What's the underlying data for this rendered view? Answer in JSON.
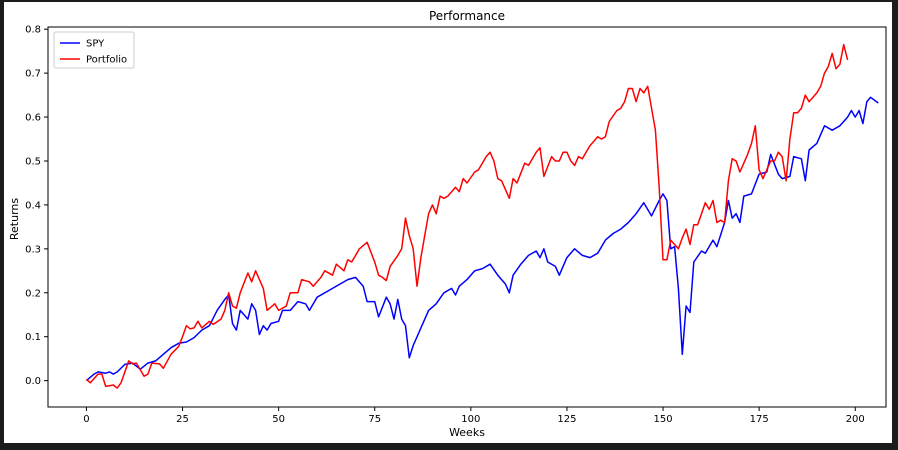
{
  "chart_data": {
    "type": "line",
    "title": "Performance",
    "xlabel": "Weeks",
    "ylabel": "Returns",
    "xlim": [
      -10,
      208
    ],
    "ylim": [
      -0.06,
      0.805
    ],
    "xticks": [
      0,
      25,
      50,
      75,
      100,
      125,
      150,
      175,
      200
    ],
    "yticks": [
      0.0,
      0.1,
      0.2,
      0.3,
      0.4,
      0.5,
      0.6,
      0.7,
      0.8
    ],
    "grid": false,
    "legend_position": "top-left",
    "series": [
      {
        "name": "SPY",
        "color": "#0000ff",
        "points": [
          [
            0,
            0
          ],
          [
            2,
            0.015
          ],
          [
            3,
            0.02
          ],
          [
            5,
            0.017
          ],
          [
            6,
            0.02
          ],
          [
            7,
            0.015
          ],
          [
            8,
            0.02
          ],
          [
            10,
            0.037
          ],
          [
            12,
            0.04
          ],
          [
            14,
            0.026
          ],
          [
            16,
            0.04
          ],
          [
            18,
            0.045
          ],
          [
            20,
            0.06
          ],
          [
            22,
            0.075
          ],
          [
            24,
            0.085
          ],
          [
            26,
            0.088
          ],
          [
            28,
            0.098
          ],
          [
            30,
            0.115
          ],
          [
            32,
            0.125
          ],
          [
            34,
            0.16
          ],
          [
            36,
            0.185
          ],
          [
            37,
            0.195
          ],
          [
            38,
            0.13
          ],
          [
            39,
            0.115
          ],
          [
            40,
            0.16
          ],
          [
            42,
            0.14
          ],
          [
            43,
            0.175
          ],
          [
            44,
            0.16
          ],
          [
            45,
            0.105
          ],
          [
            46,
            0.125
          ],
          [
            47,
            0.115
          ],
          [
            48,
            0.13
          ],
          [
            50,
            0.135
          ],
          [
            51,
            0.16
          ],
          [
            53,
            0.16
          ],
          [
            55,
            0.18
          ],
          [
            57,
            0.175
          ],
          [
            58,
            0.16
          ],
          [
            60,
            0.19
          ],
          [
            63,
            0.205
          ],
          [
            66,
            0.22
          ],
          [
            68,
            0.23
          ],
          [
            70,
            0.235
          ],
          [
            72,
            0.215
          ],
          [
            73,
            0.18
          ],
          [
            75,
            0.18
          ],
          [
            76,
            0.145
          ],
          [
            78,
            0.19
          ],
          [
            79,
            0.175
          ],
          [
            80,
            0.14
          ],
          [
            81,
            0.185
          ],
          [
            82,
            0.14
          ],
          [
            83,
            0.125
          ],
          [
            84,
            0.052
          ],
          [
            85,
            0.08
          ],
          [
            87,
            0.12
          ],
          [
            89,
            0.16
          ],
          [
            91,
            0.175
          ],
          [
            93,
            0.2
          ],
          [
            95,
            0.21
          ],
          [
            96,
            0.195
          ],
          [
            97,
            0.215
          ],
          [
            99,
            0.23
          ],
          [
            101,
            0.25
          ],
          [
            103,
            0.255
          ],
          [
            105,
            0.265
          ],
          [
            107,
            0.24
          ],
          [
            109,
            0.22
          ],
          [
            110,
            0.2
          ],
          [
            111,
            0.24
          ],
          [
            113,
            0.265
          ],
          [
            115,
            0.285
          ],
          [
            117,
            0.295
          ],
          [
            118,
            0.28
          ],
          [
            119,
            0.3
          ],
          [
            120,
            0.27
          ],
          [
            122,
            0.26
          ],
          [
            123,
            0.24
          ],
          [
            125,
            0.28
          ],
          [
            127,
            0.3
          ],
          [
            129,
            0.285
          ],
          [
            131,
            0.28
          ],
          [
            133,
            0.29
          ],
          [
            135,
            0.32
          ],
          [
            137,
            0.335
          ],
          [
            139,
            0.345
          ],
          [
            141,
            0.36
          ],
          [
            143,
            0.38
          ],
          [
            145,
            0.405
          ],
          [
            147,
            0.375
          ],
          [
            149,
            0.41
          ],
          [
            150,
            0.425
          ],
          [
            151,
            0.41
          ],
          [
            152,
            0.3
          ],
          [
            153,
            0.305
          ],
          [
            154,
            0.21
          ],
          [
            155,
            0.06
          ],
          [
            156,
            0.17
          ],
          [
            157,
            0.155
          ],
          [
            158,
            0.27
          ],
          [
            160,
            0.295
          ],
          [
            161,
            0.29
          ],
          [
            163,
            0.32
          ],
          [
            164,
            0.305
          ],
          [
            166,
            0.36
          ],
          [
            167,
            0.41
          ],
          [
            168,
            0.37
          ],
          [
            169,
            0.38
          ],
          [
            170,
            0.36
          ],
          [
            171,
            0.42
          ],
          [
            173,
            0.425
          ],
          [
            175,
            0.47
          ],
          [
            177,
            0.475
          ],
          [
            178,
            0.515
          ],
          [
            180,
            0.47
          ],
          [
            181,
            0.46
          ],
          [
            183,
            0.465
          ],
          [
            184,
            0.51
          ],
          [
            186,
            0.505
          ],
          [
            187,
            0.455
          ],
          [
            188,
            0.525
          ],
          [
            190,
            0.54
          ],
          [
            192,
            0.58
          ],
          [
            194,
            0.57
          ],
          [
            196,
            0.58
          ],
          [
            198,
            0.6
          ],
          [
            199,
            0.615
          ],
          [
            200,
            0.6
          ],
          [
            201,
            0.615
          ],
          [
            202,
            0.585
          ],
          [
            203,
            0.635
          ],
          [
            204,
            0.645
          ],
          [
            206,
            0.632
          ]
        ]
      },
      {
        "name": "Portfolio",
        "color": "#ff0000",
        "points": [
          [
            0,
            0.003
          ],
          [
            1,
            -0.005
          ],
          [
            3,
            0.015
          ],
          [
            4,
            0.015
          ],
          [
            5,
            -0.013
          ],
          [
            7,
            -0.01
          ],
          [
            8,
            -0.017
          ],
          [
            9,
            -0.005
          ],
          [
            10,
            0.02
          ],
          [
            11,
            0.045
          ],
          [
            12,
            0.038
          ],
          [
            13,
            0.04
          ],
          [
            14,
            0.025
          ],
          [
            15,
            0.01
          ],
          [
            16,
            0.015
          ],
          [
            17,
            0.04
          ],
          [
            19,
            0.038
          ],
          [
            20,
            0.028
          ],
          [
            22,
            0.06
          ],
          [
            24,
            0.078
          ],
          [
            25,
            0.1
          ],
          [
            26,
            0.125
          ],
          [
            27,
            0.118
          ],
          [
            28,
            0.12
          ],
          [
            29,
            0.135
          ],
          [
            30,
            0.12
          ],
          [
            32,
            0.135
          ],
          [
            33,
            0.128
          ],
          [
            35,
            0.14
          ],
          [
            36,
            0.16
          ],
          [
            37,
            0.2
          ],
          [
            38,
            0.17
          ],
          [
            39,
            0.165
          ],
          [
            40,
            0.2
          ],
          [
            42,
            0.245
          ],
          [
            43,
            0.225
          ],
          [
            44,
            0.25
          ],
          [
            46,
            0.21
          ],
          [
            47,
            0.16
          ],
          [
            49,
            0.175
          ],
          [
            50,
            0.16
          ],
          [
            52,
            0.17
          ],
          [
            53,
            0.2
          ],
          [
            55,
            0.2
          ],
          [
            56,
            0.23
          ],
          [
            58,
            0.225
          ],
          [
            59,
            0.215
          ],
          [
            61,
            0.235
          ],
          [
            62,
            0.25
          ],
          [
            64,
            0.24
          ],
          [
            65,
            0.265
          ],
          [
            67,
            0.25
          ],
          [
            68,
            0.275
          ],
          [
            69,
            0.27
          ],
          [
            71,
            0.3
          ],
          [
            73,
            0.315
          ],
          [
            75,
            0.27
          ],
          [
            76,
            0.24
          ],
          [
            77,
            0.235
          ],
          [
            78,
            0.228
          ],
          [
            79,
            0.26
          ],
          [
            81,
            0.285
          ],
          [
            82,
            0.3
          ],
          [
            83,
            0.37
          ],
          [
            84,
            0.33
          ],
          [
            85,
            0.3
          ],
          [
            86,
            0.215
          ],
          [
            87,
            0.28
          ],
          [
            88,
            0.33
          ],
          [
            89,
            0.38
          ],
          [
            90,
            0.4
          ],
          [
            91,
            0.38
          ],
          [
            92,
            0.42
          ],
          [
            93,
            0.415
          ],
          [
            94,
            0.42
          ],
          [
            96,
            0.44
          ],
          [
            97,
            0.43
          ],
          [
            98,
            0.46
          ],
          [
            99,
            0.45
          ],
          [
            101,
            0.475
          ],
          [
            102,
            0.48
          ],
          [
            104,
            0.51
          ],
          [
            105,
            0.52
          ],
          [
            106,
            0.5
          ],
          [
            107,
            0.46
          ],
          [
            108,
            0.455
          ],
          [
            110,
            0.415
          ],
          [
            111,
            0.46
          ],
          [
            112,
            0.45
          ],
          [
            114,
            0.495
          ],
          [
            115,
            0.49
          ],
          [
            117,
            0.52
          ],
          [
            118,
            0.53
          ],
          [
            119,
            0.465
          ],
          [
            121,
            0.51
          ],
          [
            122,
            0.5
          ],
          [
            123,
            0.5
          ],
          [
            124,
            0.52
          ],
          [
            125,
            0.52
          ],
          [
            126,
            0.5
          ],
          [
            127,
            0.49
          ],
          [
            128,
            0.51
          ],
          [
            129,
            0.505
          ],
          [
            131,
            0.535
          ],
          [
            132,
            0.545
          ],
          [
            133,
            0.555
          ],
          [
            134,
            0.55
          ],
          [
            135,
            0.555
          ],
          [
            136,
            0.59
          ],
          [
            138,
            0.615
          ],
          [
            139,
            0.62
          ],
          [
            140,
            0.635
          ],
          [
            141,
            0.665
          ],
          [
            142,
            0.665
          ],
          [
            143,
            0.635
          ],
          [
            144,
            0.665
          ],
          [
            145,
            0.655
          ],
          [
            146,
            0.67
          ],
          [
            148,
            0.57
          ],
          [
            149,
            0.44
          ],
          [
            150,
            0.275
          ],
          [
            151,
            0.275
          ],
          [
            152,
            0.32
          ],
          [
            153,
            0.31
          ],
          [
            154,
            0.3
          ],
          [
            155,
            0.325
          ],
          [
            156,
            0.345
          ],
          [
            157,
            0.31
          ],
          [
            158,
            0.355
          ],
          [
            159,
            0.355
          ],
          [
            160,
            0.38
          ],
          [
            161,
            0.405
          ],
          [
            162,
            0.39
          ],
          [
            163,
            0.41
          ],
          [
            164,
            0.36
          ],
          [
            165,
            0.365
          ],
          [
            166,
            0.36
          ],
          [
            167,
            0.455
          ],
          [
            168,
            0.505
          ],
          [
            169,
            0.5
          ],
          [
            170,
            0.475
          ],
          [
            171,
            0.495
          ],
          [
            172,
            0.515
          ],
          [
            173,
            0.54
          ],
          [
            174,
            0.58
          ],
          [
            175,
            0.48
          ],
          [
            176,
            0.46
          ],
          [
            177,
            0.48
          ],
          [
            178,
            0.5
          ],
          [
            179,
            0.5
          ],
          [
            180,
            0.52
          ],
          [
            181,
            0.51
          ],
          [
            182,
            0.455
          ],
          [
            183,
            0.55
          ],
          [
            184,
            0.61
          ],
          [
            185,
            0.61
          ],
          [
            186,
            0.62
          ],
          [
            187,
            0.65
          ],
          [
            188,
            0.635
          ],
          [
            189,
            0.645
          ],
          [
            190,
            0.655
          ],
          [
            191,
            0.67
          ],
          [
            192,
            0.7
          ],
          [
            193,
            0.715
          ],
          [
            194,
            0.745
          ],
          [
            195,
            0.71
          ],
          [
            196,
            0.72
          ],
          [
            197,
            0.765
          ],
          [
            198,
            0.73
          ]
        ]
      }
    ]
  }
}
